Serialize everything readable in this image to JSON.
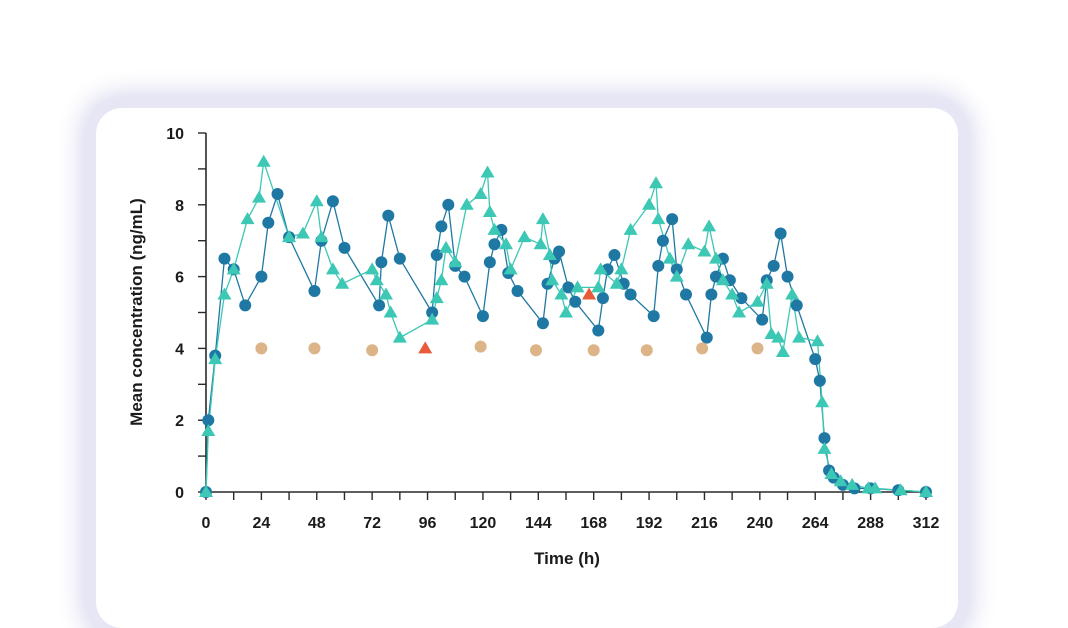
{
  "chart_data": {
    "type": "line",
    "xlabel": "Time (h)",
    "ylabel": "Mean concentration (ng/mL)",
    "xlim": [
      0,
      312
    ],
    "ylim": [
      0,
      10
    ],
    "x_ticks": [
      0,
      24,
      48,
      72,
      96,
      120,
      144,
      168,
      192,
      216,
      240,
      264,
      288,
      312
    ],
    "y_ticks": [
      0,
      2,
      4,
      6,
      8,
      10
    ],
    "grid": false,
    "legend": "none",
    "series": [
      {
        "marker": "circle",
        "color": "#1f78a4",
        "points": [
          [
            0,
            0
          ],
          [
            1,
            2.0
          ],
          [
            4,
            3.8
          ],
          [
            8,
            6.5
          ],
          [
            12,
            6.2
          ],
          [
            17,
            5.2
          ],
          [
            24,
            6.0
          ],
          [
            27,
            7.5
          ],
          [
            31,
            8.3
          ],
          [
            36,
            7.1
          ],
          [
            47,
            5.6
          ],
          [
            50,
            7.0
          ],
          [
            55,
            8.1
          ],
          [
            60,
            6.8
          ],
          [
            75,
            5.2
          ],
          [
            76,
            6.4
          ],
          [
            79,
            7.7
          ],
          [
            84,
            6.5
          ],
          [
            98,
            5.0
          ],
          [
            100,
            6.6
          ],
          [
            102,
            7.4
          ],
          [
            105,
            8.0
          ],
          [
            108,
            6.3
          ],
          [
            112,
            6.0
          ],
          [
            120,
            4.9
          ],
          [
            123,
            6.4
          ],
          [
            125,
            6.9
          ],
          [
            128,
            7.3
          ],
          [
            131,
            6.1
          ],
          [
            135,
            5.6
          ],
          [
            146,
            4.7
          ],
          [
            148,
            5.8
          ],
          [
            151,
            6.5
          ],
          [
            153,
            6.7
          ],
          [
            157,
            5.7
          ],
          [
            160,
            5.3
          ],
          [
            170,
            4.5
          ],
          [
            172,
            5.4
          ],
          [
            174,
            6.2
          ],
          [
            177,
            6.6
          ],
          [
            181,
            5.8
          ],
          [
            184,
            5.5
          ],
          [
            194,
            4.9
          ],
          [
            196,
            6.3
          ],
          [
            198,
            7.0
          ],
          [
            202,
            7.6
          ],
          [
            204,
            6.2
          ],
          [
            208,
            5.5
          ],
          [
            217,
            4.3
          ],
          [
            219,
            5.5
          ],
          [
            221,
            6.0
          ],
          [
            224,
            6.5
          ],
          [
            227,
            5.9
          ],
          [
            232,
            5.4
          ],
          [
            241,
            4.8
          ],
          [
            243,
            5.9
          ],
          [
            246,
            6.3
          ],
          [
            249,
            7.2
          ],
          [
            252,
            6.0
          ],
          [
            256,
            5.2
          ],
          [
            264,
            3.7
          ],
          [
            266,
            3.1
          ],
          [
            268,
            1.5
          ],
          [
            270,
            0.6
          ],
          [
            272,
            0.4
          ],
          [
            276,
            0.2
          ],
          [
            281,
            0.1
          ],
          [
            288,
            0.1
          ],
          [
            300,
            0.05
          ],
          [
            312,
            0.0
          ]
        ]
      },
      {
        "marker": "triangle",
        "color": "#3cc8b4",
        "points": [
          [
            0,
            0
          ],
          [
            1,
            1.7
          ],
          [
            4,
            3.7
          ],
          [
            8,
            5.5
          ],
          [
            12,
            6.2
          ],
          [
            18,
            7.6
          ],
          [
            23,
            8.2
          ],
          [
            25,
            9.2
          ],
          [
            36,
            7.1
          ],
          [
            42,
            7.2
          ],
          [
            48,
            8.1
          ],
          [
            50,
            7.1
          ],
          [
            55,
            6.2
          ],
          [
            59,
            5.8
          ],
          [
            72,
            6.2
          ],
          [
            74,
            5.9
          ],
          [
            78,
            5.5
          ],
          [
            80,
            5.0
          ],
          [
            84,
            4.3
          ],
          [
            98,
            4.8
          ],
          [
            100,
            5.4
          ],
          [
            102,
            5.9
          ],
          [
            104,
            6.8
          ],
          [
            108,
            6.4
          ],
          [
            113,
            8.0
          ],
          [
            119,
            8.3
          ],
          [
            122,
            8.9
          ],
          [
            123,
            7.8
          ],
          [
            125,
            7.3
          ],
          [
            130,
            6.9
          ],
          [
            132,
            6.2
          ],
          [
            138,
            7.1
          ],
          [
            145,
            6.9
          ],
          [
            146,
            7.6
          ],
          [
            149,
            6.6
          ],
          [
            150,
            5.9
          ],
          [
            154,
            5.5
          ],
          [
            156,
            5.0
          ],
          [
            161,
            5.7
          ],
          [
            170,
            5.7
          ],
          [
            171,
            6.2
          ],
          [
            178,
            5.8
          ],
          [
            180,
            6.2
          ],
          [
            184,
            7.3
          ],
          [
            192,
            8.0
          ],
          [
            195,
            8.6
          ],
          [
            196,
            7.6
          ],
          [
            201,
            6.5
          ],
          [
            204,
            6.0
          ],
          [
            209,
            6.9
          ],
          [
            216,
            6.7
          ],
          [
            218,
            7.4
          ],
          [
            221,
            6.5
          ],
          [
            224,
            5.9
          ],
          [
            228,
            5.5
          ],
          [
            231,
            5.0
          ],
          [
            239,
            5.3
          ],
          [
            243,
            5.8
          ],
          [
            245,
            4.4
          ],
          [
            248,
            4.3
          ],
          [
            250,
            3.9
          ],
          [
            254,
            5.5
          ],
          [
            257,
            4.3
          ],
          [
            265,
            4.2
          ],
          [
            267,
            2.5
          ],
          [
            268,
            1.2
          ],
          [
            271,
            0.5
          ],
          [
            275,
            0.3
          ],
          [
            280,
            0.2
          ],
          [
            287,
            0.1
          ],
          [
            290,
            0.1
          ],
          [
            301,
            0.05
          ],
          [
            312,
            0.0
          ]
        ]
      }
    ],
    "markers_tan": {
      "color": "#dcb487",
      "points": [
        [
          24,
          4.0
        ],
        [
          47,
          4.0
        ],
        [
          72,
          3.95
        ],
        [
          119,
          4.05
        ],
        [
          143,
          3.95
        ],
        [
          168,
          3.95
        ],
        [
          191,
          3.95
        ],
        [
          215,
          4.0
        ],
        [
          239,
          4.0
        ]
      ]
    },
    "markers_red": {
      "color": "#e85a3a",
      "points": [
        [
          95,
          4.0
        ],
        [
          166,
          5.5
        ]
      ]
    }
  }
}
